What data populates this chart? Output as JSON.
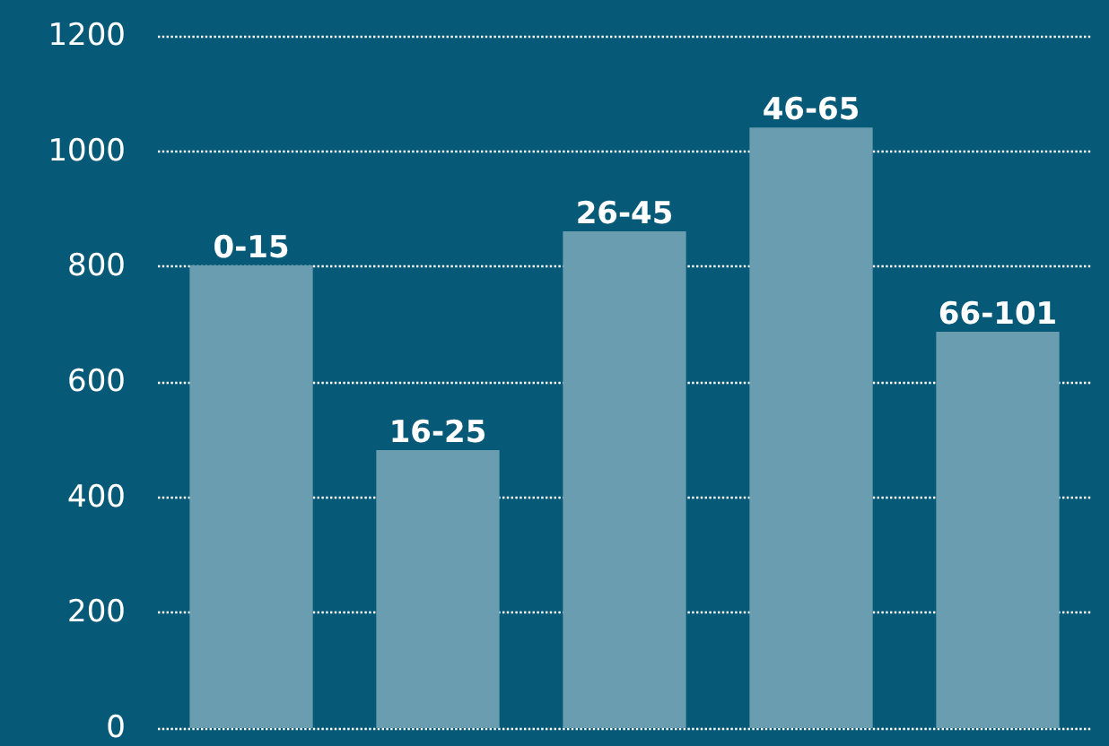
{
  "chart_data": {
    "type": "bar",
    "categories": [
      "0-15",
      "16-25",
      "26-45",
      "46-65",
      "66-101"
    ],
    "values": [
      802,
      482,
      861,
      1041,
      687
    ],
    "color": "#6a9db0",
    "ylim": [
      0,
      1200
    ],
    "yticks": [
      0,
      200,
      400,
      600,
      800,
      1000,
      1200
    ],
    "grid": "y",
    "tick_labels": "y"
  }
}
